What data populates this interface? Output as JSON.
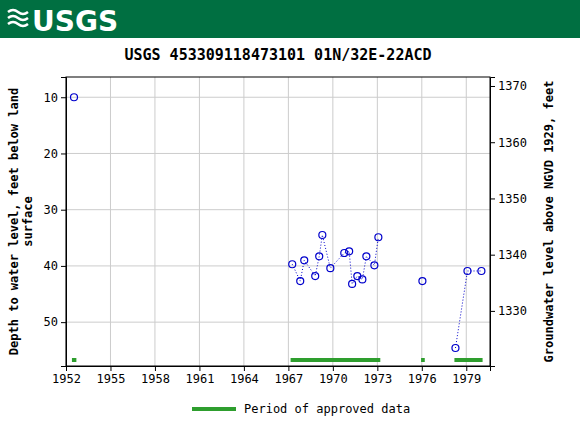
{
  "header": {
    "logo_text": "USGS"
  },
  "chart_data": {
    "type": "line",
    "title": "USGS 453309118473101 01N/32E-22ACD",
    "y_label": [
      "Depth to water level, feet below land",
      "surface"
    ],
    "y2_label": "Groundwater level above NGVD 1929, feet",
    "x": [
      1952.54,
      1960,
      1967.26,
      1967.8,
      1968.07,
      1968.81,
      1969.08,
      1969.29,
      1969.83,
      1970.77,
      1971.1,
      1971.3,
      1971.65,
      1971.99,
      1972.26,
      1972.8,
      1973.07,
      1974.5,
      1976.04,
      1977,
      1978.27,
      1979.08,
      1980.02
    ],
    "series": [
      {
        "color": "#0000cc",
        "marker": "circle",
        "line_style": "dotted",
        "values": [
          10.0,
          null,
          39.7,
          42.7,
          39.0,
          41.8,
          38.3,
          34.5,
          40.4,
          37.7,
          37.4,
          43.2,
          41.8,
          42.4,
          38.3,
          39.9,
          34.9,
          null,
          42.7,
          null,
          54.6,
          40.9,
          40.9
        ]
      }
    ],
    "xlim": [
      1952,
      1980.6
    ],
    "xticks": [
      1952,
      1955,
      1958,
      1961,
      1964,
      1967,
      1970,
      1973,
      1976,
      1979
    ],
    "ylim": [
      57.8,
      6.4
    ],
    "yticks": [
      10,
      20,
      30,
      40,
      50
    ],
    "y2lim": [
      1320.2,
      1371.6
    ],
    "y2ticks": [
      1330,
      1340,
      1350,
      1360,
      1370
    ],
    "grid": true,
    "legend": "bottom",
    "approved_periods": {
      "name": "Period of approved data",
      "color": "#2e9e2e",
      "ranges": [
        [
          1952.4,
          1952.7
        ],
        [
          1967.15,
          1973.2
        ],
        [
          1975.95,
          1976.2
        ],
        [
          1978.2,
          1980.1
        ]
      ]
    }
  }
}
